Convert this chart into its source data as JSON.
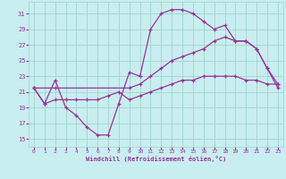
{
  "xlabel": "Windchill (Refroidissement éolien,°C)",
  "bg_color": "#c8eef0",
  "grid_color": "#a0d4cc",
  "line_color": "#993399",
  "ylim": [
    14.0,
    32.5
  ],
  "xlim": [
    -0.5,
    23.5
  ],
  "yticks": [
    15,
    17,
    19,
    21,
    23,
    25,
    27,
    29,
    31
  ],
  "xticks": [
    0,
    1,
    2,
    3,
    4,
    5,
    6,
    7,
    8,
    9,
    10,
    11,
    12,
    13,
    14,
    15,
    16,
    17,
    18,
    19,
    20,
    21,
    22,
    23
  ],
  "line1_x": [
    0,
    1,
    2,
    3,
    4,
    5,
    6,
    7,
    8,
    9,
    10,
    11,
    12,
    13,
    14,
    15,
    16,
    17,
    18,
    19,
    20,
    21,
    22,
    23
  ],
  "line1_y": [
    21.5,
    19.5,
    22.5,
    19.0,
    18.0,
    16.5,
    15.5,
    15.5,
    19.5,
    23.5,
    23.0,
    29.0,
    31.0,
    31.5,
    31.5,
    31.0,
    30.0,
    29.0,
    29.5,
    27.5,
    27.5,
    26.5,
    24.0,
    21.5
  ],
  "line2_x": [
    0,
    2,
    9,
    10,
    11,
    12,
    13,
    14,
    15,
    16,
    17,
    18,
    19,
    20,
    21,
    22,
    23
  ],
  "line2_y": [
    21.5,
    21.5,
    21.5,
    22.0,
    23.0,
    24.0,
    25.0,
    25.5,
    26.0,
    26.5,
    27.5,
    28.0,
    27.5,
    27.5,
    26.5,
    24.0,
    22.0
  ],
  "line3_x": [
    0,
    1,
    2,
    3,
    4,
    5,
    6,
    7,
    8,
    9,
    10,
    11,
    12,
    13,
    14,
    15,
    16,
    17,
    18,
    19,
    20,
    21,
    22,
    23
  ],
  "line3_y": [
    21.5,
    19.5,
    20.0,
    20.0,
    20.0,
    20.0,
    20.0,
    20.5,
    21.0,
    20.0,
    20.5,
    21.0,
    21.5,
    22.0,
    22.5,
    22.5,
    23.0,
    23.0,
    23.0,
    23.0,
    22.5,
    22.5,
    22.0,
    22.0
  ]
}
